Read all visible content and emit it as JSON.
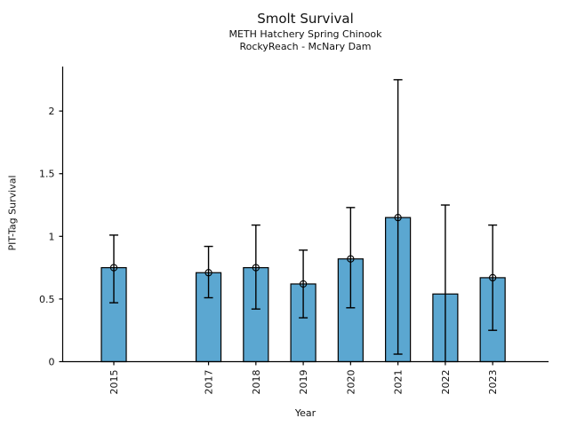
{
  "chart_data": {
    "type": "bar",
    "title": "Smolt Survival",
    "subtitle": [
      "METH Hatchery Spring Chinook",
      "RockyReach - McNary Dam"
    ],
    "xlabel": "Year",
    "ylabel": "PIT-Tag Survival",
    "categories": [
      "2015",
      "2017",
      "2018",
      "2019",
      "2020",
      "2021",
      "2022",
      "2023"
    ],
    "x_values": [
      2015,
      2017,
      2018,
      2019,
      2020,
      2021,
      2022,
      2023
    ],
    "values": [
      0.75,
      0.71,
      0.75,
      0.62,
      0.82,
      1.15,
      0.54,
      0.67
    ],
    "error_low": [
      0.47,
      0.51,
      0.42,
      0.35,
      0.43,
      0.06,
      0.0,
      0.25
    ],
    "error_high": [
      1.01,
      0.92,
      1.09,
      0.89,
      1.23,
      2.25,
      1.25,
      1.09
    ],
    "point_marker": [
      true,
      true,
      true,
      true,
      true,
      true,
      false,
      true
    ],
    "lower_cap": [
      true,
      true,
      true,
      true,
      true,
      true,
      false,
      true
    ],
    "yticks": [
      0,
      0.5,
      1,
      1.5,
      2
    ],
    "ytick_labels": [
      "0",
      "0.5",
      "1",
      "1.5",
      "2"
    ],
    "ylim": [
      0,
      2.355
    ],
    "xlim": [
      2013.92,
      2024.18
    ],
    "grid": false,
    "legend": null,
    "missing_years": [
      "2016"
    ],
    "bar_color": "#5BA7D1",
    "bar_edge_color": "#000000",
    "error_bar_color": "#000000",
    "axis_color": "#000000",
    "text_color": "#111111",
    "background_color": "#ffffff"
  }
}
